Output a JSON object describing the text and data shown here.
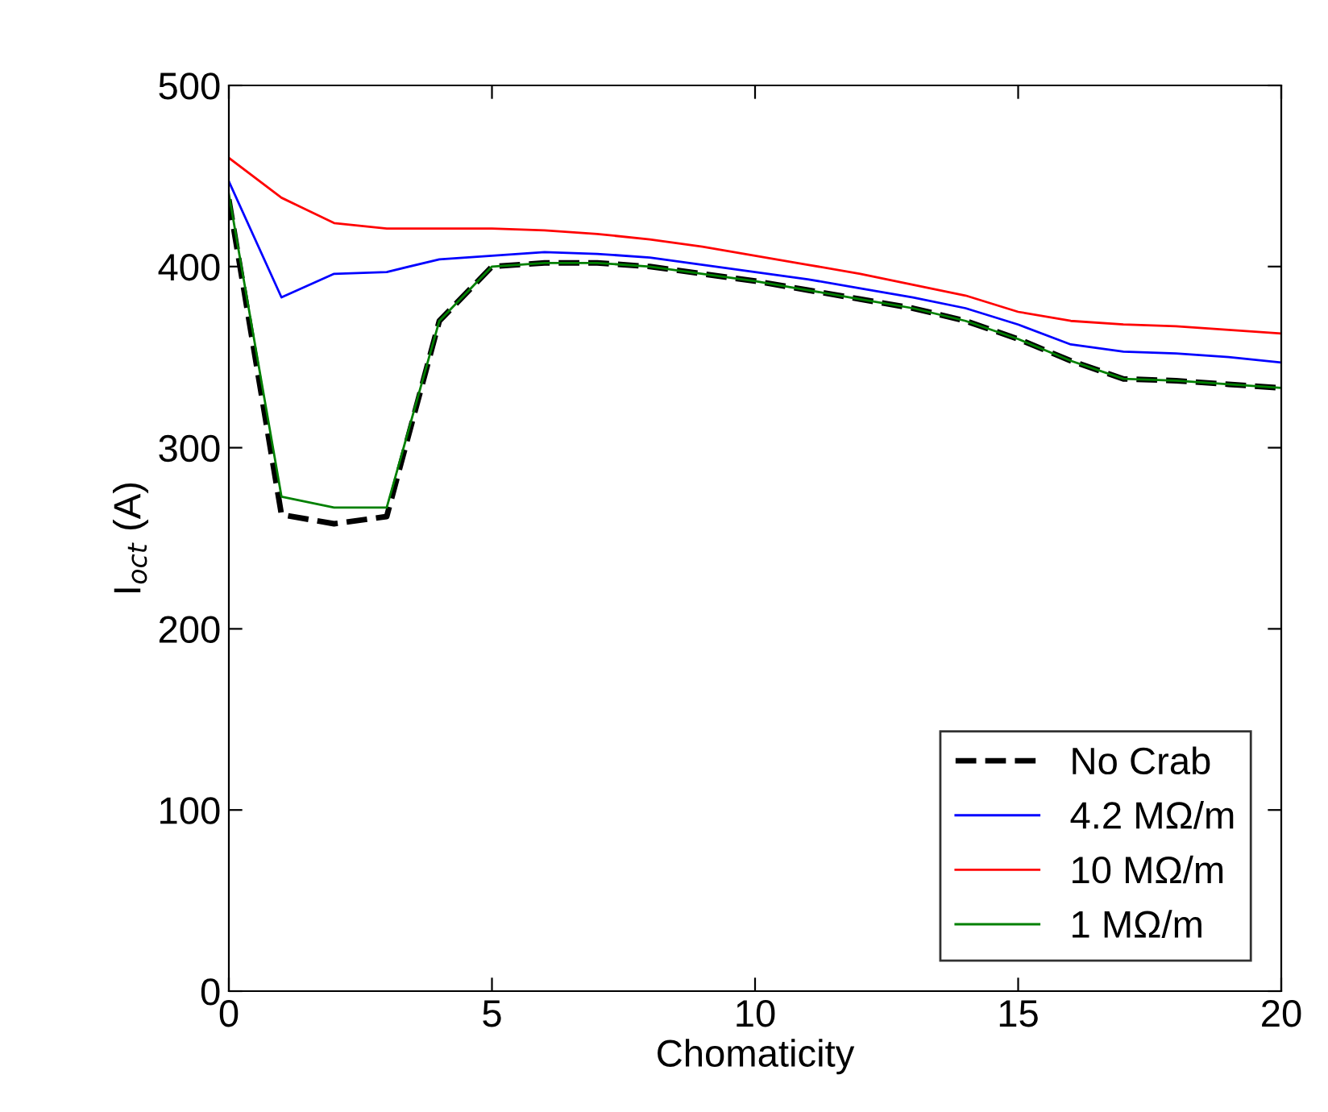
{
  "chart_data": {
    "type": "line",
    "xlabel": "Chomaticity",
    "ylabel": "I$_{oct}$ (A)",
    "x": [
      0,
      1,
      2,
      3,
      4,
      5,
      6,
      7,
      8,
      9,
      10,
      11,
      12,
      13,
      14,
      15,
      16,
      17,
      18,
      19,
      20
    ],
    "xlim": [
      0,
      20
    ],
    "xticks": [
      0,
      5,
      10,
      15,
      20
    ],
    "ylim": [
      0,
      500
    ],
    "yticks": [
      0,
      100,
      200,
      300,
      400,
      500
    ],
    "grid": false,
    "legend": "bottom right",
    "series": [
      {
        "name": "No Crab",
        "color": "#000000",
        "line_style": "dashed",
        "values": [
          437,
          263,
          258,
          262,
          370,
          400,
          402,
          402,
          400,
          396,
          392,
          387,
          382,
          377,
          370,
          360,
          348,
          338,
          337,
          335,
          333
        ]
      },
      {
        "name": "4.2 MΩ/m",
        "color": "#0000ff",
        "values": [
          447,
          383,
          396,
          397,
          404,
          406,
          408,
          407,
          405,
          401,
          397,
          393,
          388,
          383,
          377,
          368,
          357,
          353,
          352,
          350,
          347
        ]
      },
      {
        "name": "10 MΩ/m",
        "color": "#ff0000",
        "values": [
          460,
          438,
          424,
          421,
          421,
          421,
          420,
          418,
          415,
          411,
          406,
          401,
          396,
          390,
          384,
          375,
          370,
          368,
          367,
          365,
          363
        ]
      },
      {
        "name": "1 MΩ/m",
        "color": "#008000",
        "values": [
          440,
          273,
          267,
          267,
          370,
          400,
          402,
          402,
          400,
          396,
          392,
          387,
          382,
          377,
          370,
          360,
          348,
          338,
          337,
          335,
          333
        ]
      }
    ]
  }
}
